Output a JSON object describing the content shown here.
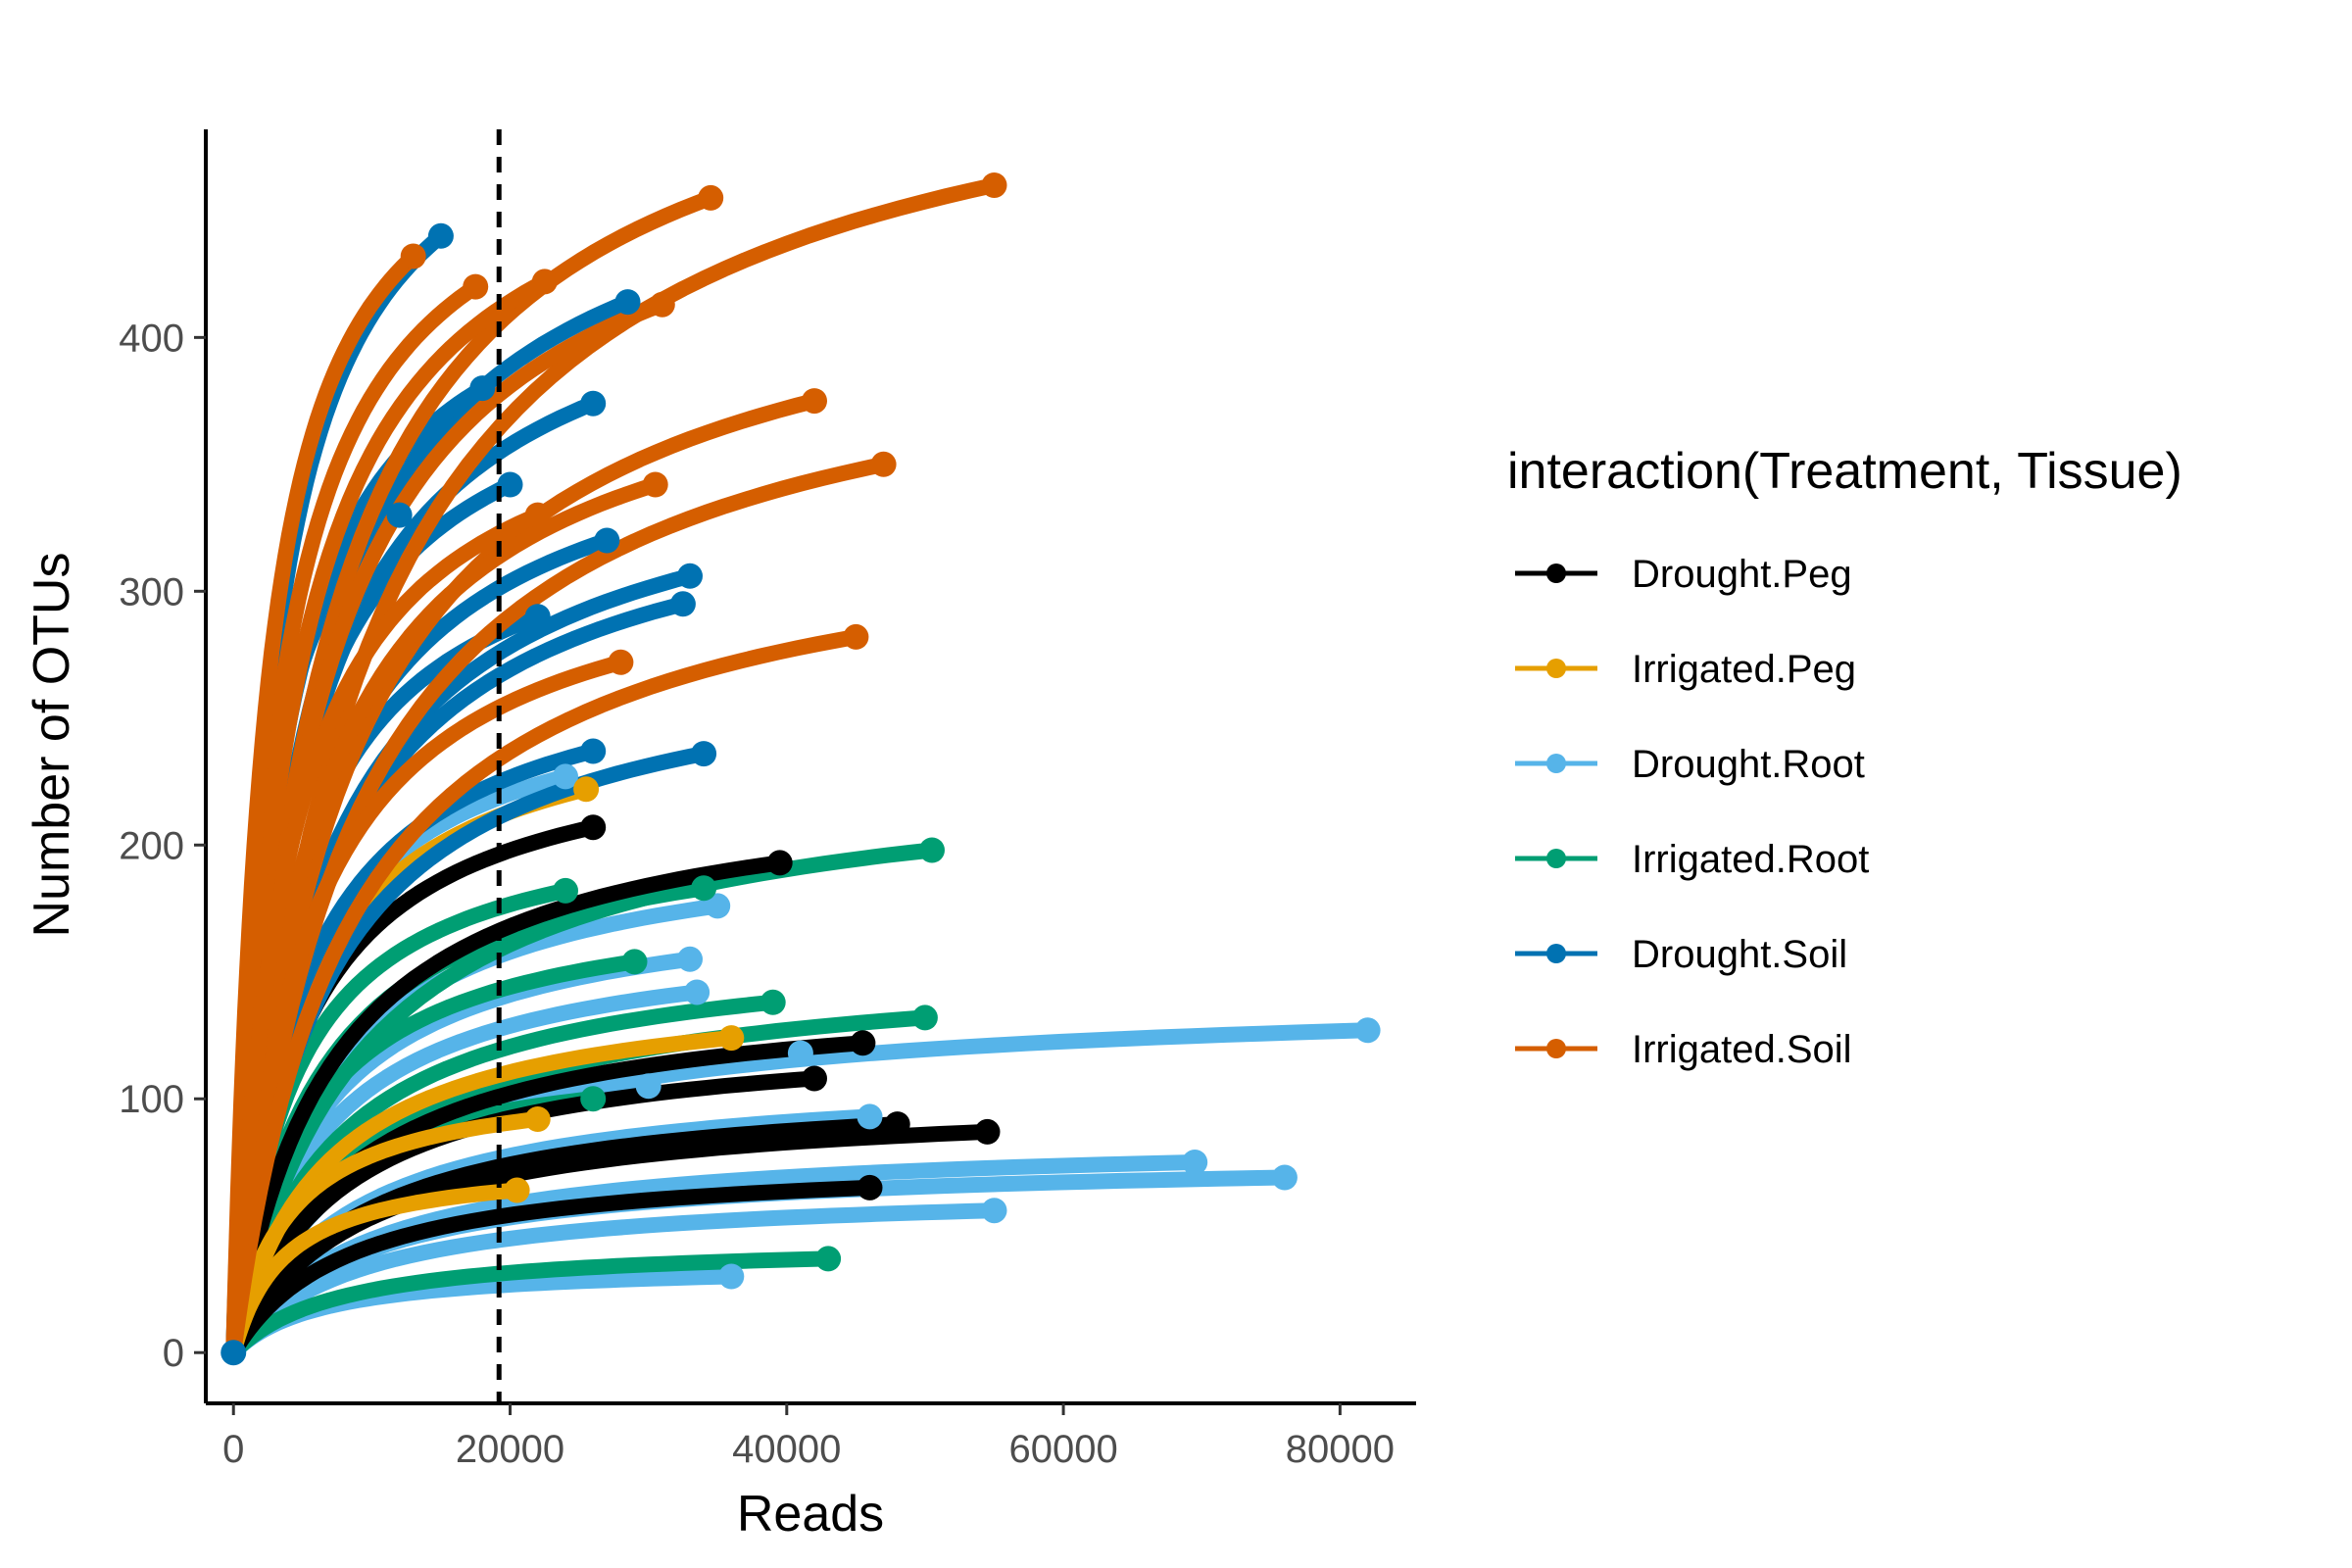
{
  "chart_data": {
    "type": "line",
    "title": "",
    "xlabel": "Reads",
    "ylabel": "Number of OTUs",
    "xlim": [
      -2000,
      85500
    ],
    "ylim": [
      -20,
      482
    ],
    "x_ticks": [
      0,
      20000,
      40000,
      60000,
      80000
    ],
    "x_tick_labels": [
      "0",
      "20000",
      "40000",
      "60000",
      "80000"
    ],
    "y_ticks": [
      0,
      100,
      200,
      300,
      400
    ],
    "y_tick_labels": [
      "0",
      "100",
      "200",
      "300",
      "400"
    ],
    "reference_line": {
      "x": 19200,
      "style": "dashed",
      "color": "#000000"
    },
    "grid": false,
    "legend": {
      "title": "interaction(Treatment, Tissue)",
      "placement": "right",
      "entries": [
        {
          "name": "Drought.Peg",
          "color": "#000000"
        },
        {
          "name": "Irrigated.Peg",
          "color": "#E69F00"
        },
        {
          "name": "Drought.Root",
          "color": "#56B4E9"
        },
        {
          "name": "Irrigated.Root",
          "color": "#009E73"
        },
        {
          "name": "Drought.Soil",
          "color": "#0072B2"
        },
        {
          "name": "Irrigated.Soil",
          "color": "#D55E00"
        }
      ]
    },
    "series": [
      {
        "group": "Drought.Root",
        "color": "#56B4E9",
        "curves": [
          {
            "max_reads": 82000,
            "final_otus": 127
          },
          {
            "max_reads": 76000,
            "final_otus": 69
          },
          {
            "max_reads": 69500,
            "final_otus": 75
          },
          {
            "max_reads": 55000,
            "final_otus": 56
          },
          {
            "max_reads": 46000,
            "final_otus": 93
          },
          {
            "max_reads": 41000,
            "final_otus": 118
          },
          {
            "max_reads": 36000,
            "final_otus": 30
          },
          {
            "max_reads": 35000,
            "final_otus": 176
          },
          {
            "max_reads": 33000,
            "final_otus": 155
          },
          {
            "max_reads": 33500,
            "final_otus": 142
          },
          {
            "max_reads": 24000,
            "final_otus": 227
          },
          {
            "max_reads": 30000,
            "final_otus": 105
          }
        ]
      },
      {
        "group": "Irrigated.Root",
        "color": "#009E73",
        "curves": [
          {
            "max_reads": 50500,
            "final_otus": 198
          },
          {
            "max_reads": 50000,
            "final_otus": 132
          },
          {
            "max_reads": 43000,
            "final_otus": 37
          },
          {
            "max_reads": 39000,
            "final_otus": 138
          },
          {
            "max_reads": 34000,
            "final_otus": 183
          },
          {
            "max_reads": 29000,
            "final_otus": 154
          },
          {
            "max_reads": 24000,
            "final_otus": 182
          },
          {
            "max_reads": 26000,
            "final_otus": 100
          }
        ]
      },
      {
        "group": "Drought.Peg",
        "color": "#000000",
        "curves": [
          {
            "max_reads": 54500,
            "final_otus": 87
          },
          {
            "max_reads": 48000,
            "final_otus": 90
          },
          {
            "max_reads": 45500,
            "final_otus": 122
          },
          {
            "max_reads": 39500,
            "final_otus": 193
          },
          {
            "max_reads": 26000,
            "final_otus": 207
          },
          {
            "max_reads": 42000,
            "final_otus": 108
          },
          {
            "max_reads": 46000,
            "final_otus": 65
          }
        ]
      },
      {
        "group": "Irrigated.Peg",
        "color": "#E69F00",
        "curves": [
          {
            "max_reads": 25500,
            "final_otus": 222
          },
          {
            "max_reads": 36000,
            "final_otus": 124
          },
          {
            "max_reads": 22000,
            "final_otus": 92
          },
          {
            "max_reads": 20500,
            "final_otus": 64
          }
        ]
      },
      {
        "group": "Drought.Soil",
        "color": "#0072B2",
        "curves": [
          {
            "max_reads": 34000,
            "final_otus": 236
          },
          {
            "max_reads": 26000,
            "final_otus": 237
          },
          {
            "max_reads": 33000,
            "final_otus": 306
          },
          {
            "max_reads": 32500,
            "final_otus": 295
          },
          {
            "max_reads": 26000,
            "final_otus": 374
          },
          {
            "max_reads": 28500,
            "final_otus": 414
          },
          {
            "max_reads": 15000,
            "final_otus": 440
          },
          {
            "max_reads": 20000,
            "final_otus": 342
          },
          {
            "max_reads": 12000,
            "final_otus": 330
          },
          {
            "max_reads": 27000,
            "final_otus": 320
          },
          {
            "max_reads": 22000,
            "final_otus": 290
          },
          {
            "max_reads": 18000,
            "final_otus": 380
          }
        ]
      },
      {
        "group": "Irrigated.Soil",
        "color": "#D55E00",
        "curves": [
          {
            "max_reads": 55000,
            "final_otus": 460
          },
          {
            "max_reads": 47000,
            "final_otus": 350
          },
          {
            "max_reads": 42000,
            "final_otus": 375
          },
          {
            "max_reads": 45000,
            "final_otus": 282
          },
          {
            "max_reads": 34500,
            "final_otus": 455
          },
          {
            "max_reads": 31000,
            "final_otus": 413
          },
          {
            "max_reads": 30500,
            "final_otus": 342
          },
          {
            "max_reads": 22500,
            "final_otus": 422
          },
          {
            "max_reads": 17500,
            "final_otus": 420
          },
          {
            "max_reads": 13000,
            "final_otus": 432
          },
          {
            "max_reads": 28000,
            "final_otus": 272
          },
          {
            "max_reads": 22000,
            "final_otus": 330
          }
        ]
      }
    ]
  }
}
